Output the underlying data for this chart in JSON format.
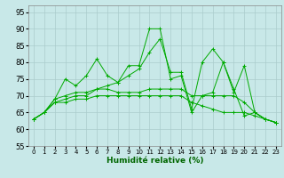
{
  "title": "",
  "xlabel": "Humidité relative (%)",
  "ylabel": "",
  "background_color": "#c8e8e8",
  "grid_color": "#aacccc",
  "line_color": "#00aa00",
  "xlim": [
    -0.5,
    23.5
  ],
  "ylim": [
    55,
    97
  ],
  "yticks": [
    55,
    60,
    65,
    70,
    75,
    80,
    85,
    90,
    95
  ],
  "xticks": [
    0,
    1,
    2,
    3,
    4,
    5,
    6,
    7,
    8,
    9,
    10,
    11,
    12,
    13,
    14,
    15,
    16,
    17,
    18,
    19,
    20,
    21,
    22,
    23
  ],
  "series": [
    [
      63,
      65,
      69,
      75,
      73,
      76,
      81,
      76,
      74,
      79,
      79,
      90,
      90,
      75,
      76,
      65,
      70,
      71,
      80,
      71,
      79,
      65,
      63,
      62
    ],
    [
      63,
      65,
      68,
      69,
      70,
      70,
      72,
      73,
      74,
      76,
      78,
      83,
      87,
      77,
      77,
      66,
      80,
      84,
      80,
      72,
      64,
      65,
      63,
      62
    ],
    [
      63,
      65,
      69,
      70,
      71,
      71,
      72,
      72,
      71,
      71,
      71,
      72,
      72,
      72,
      72,
      70,
      70,
      70,
      70,
      70,
      68,
      65,
      63,
      62
    ],
    [
      63,
      65,
      68,
      68,
      69,
      69,
      70,
      70,
      70,
      70,
      70,
      70,
      70,
      70,
      70,
      68,
      67,
      66,
      65,
      65,
      65,
      64,
      63,
      62
    ]
  ]
}
